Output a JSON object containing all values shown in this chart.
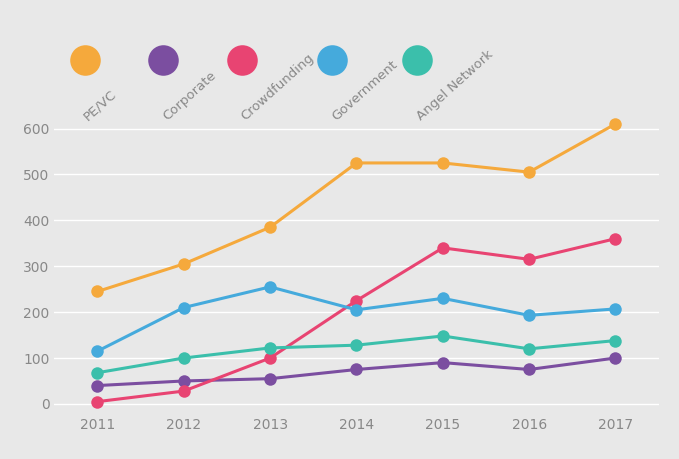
{
  "years": [
    2011,
    2012,
    2013,
    2014,
    2015,
    2016,
    2017
  ],
  "series": [
    {
      "label": "PE/VC",
      "values": [
        245,
        305,
        385,
        525,
        525,
        505,
        610
      ],
      "color": "#F5A93C"
    },
    {
      "label": "Corporate",
      "values": [
        40,
        50,
        55,
        75,
        90,
        75,
        100
      ],
      "color": "#7B4EA0"
    },
    {
      "label": "Crowdfunding",
      "values": [
        5,
        28,
        100,
        225,
        340,
        315,
        360
      ],
      "color": "#E84472"
    },
    {
      "label": "Government",
      "values": [
        115,
        210,
        255,
        205,
        230,
        193,
        207
      ],
      "color": "#45AADC"
    },
    {
      "label": "Angel Network",
      "values": [
        68,
        100,
        122,
        128,
        148,
        120,
        138
      ],
      "color": "#3BBFAB"
    }
  ],
  "ylim": [
    -20,
    660
  ],
  "yticks": [
    0,
    100,
    200,
    300,
    400,
    500,
    600
  ],
  "background_color": "#E8E8E8",
  "marker_size": 9,
  "line_width": 2.2,
  "legend_marker_size": 22,
  "legend_fontsize": 9.5,
  "tick_fontsize": 10,
  "tick_color": "#888888",
  "grid_color": "#FFFFFF",
  "label_rotation": 42
}
